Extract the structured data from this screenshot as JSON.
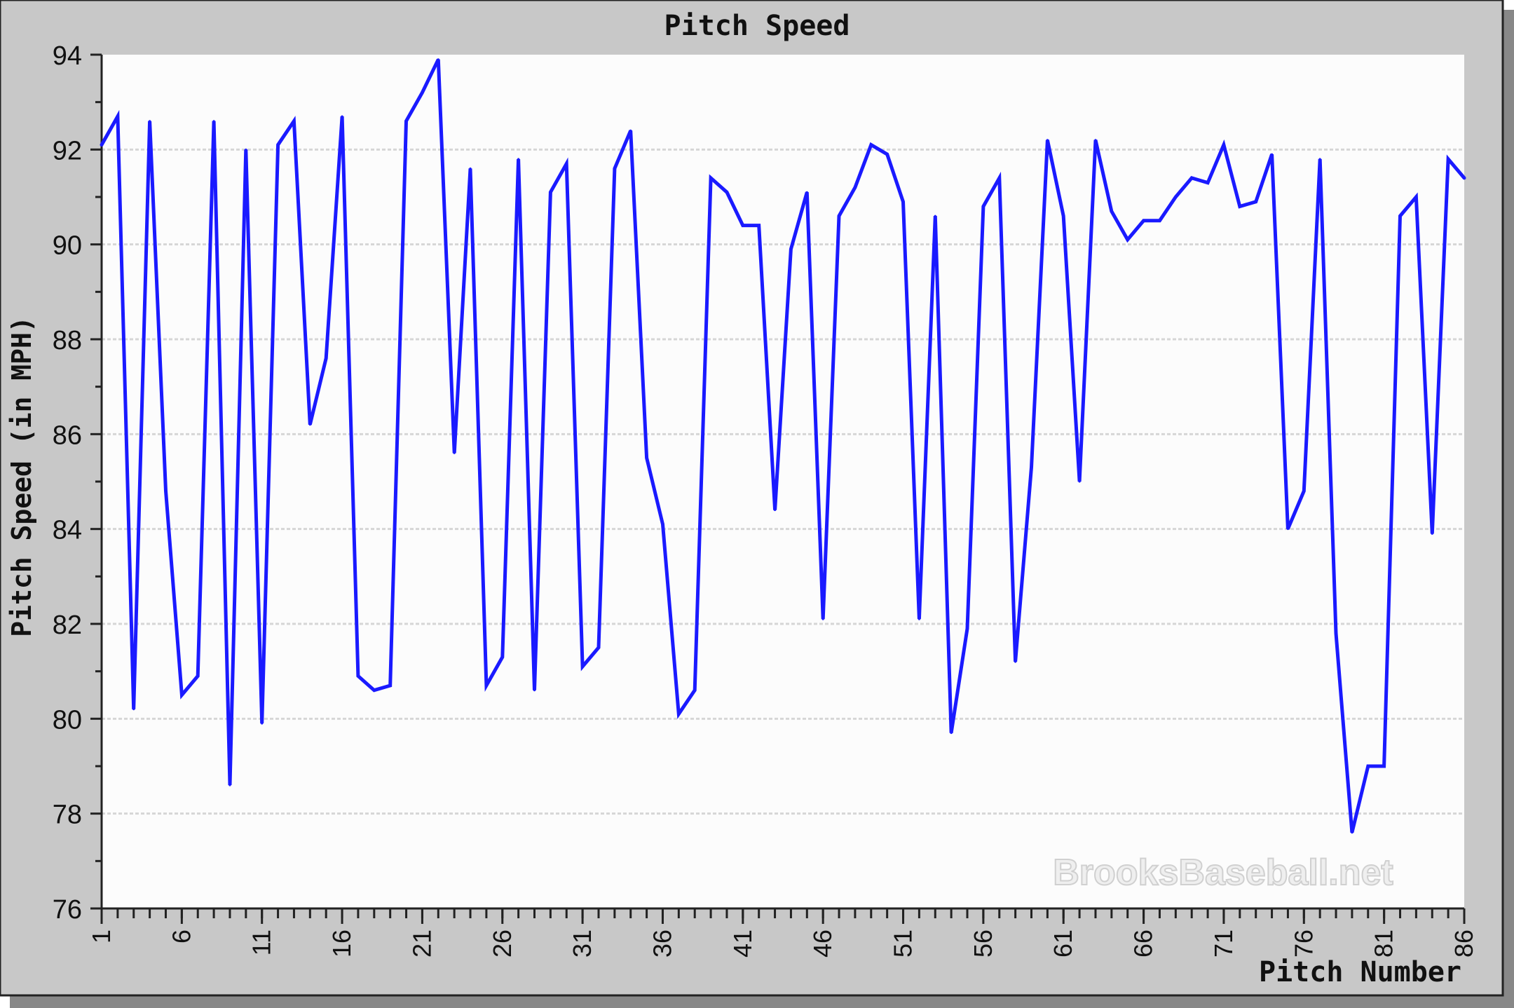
{
  "chart_data": {
    "type": "line",
    "title": "Pitch Speed",
    "xlabel": "Pitch Number",
    "ylabel": "Pitch Speed (in MPH)",
    "watermark": "BrooksBaseball.net",
    "ylim": [
      76,
      94
    ],
    "xlim": [
      1,
      86
    ],
    "yticks": [
      "76",
      "78",
      "80",
      "82",
      "84",
      "86",
      "88",
      "90",
      "92",
      "94"
    ],
    "xticks": [
      "1",
      "6",
      "11",
      "16",
      "21",
      "26",
      "31",
      "36",
      "41",
      "46",
      "51",
      "56",
      "61",
      "66",
      "71",
      "76",
      "81",
      "86"
    ],
    "grid": true,
    "colors": {
      "line": "#1a1aff",
      "frame": "#c8c8c8",
      "plot_bg": "#fcfcfc",
      "grid": "#d6d6d6"
    },
    "series": [
      {
        "x": [
          1,
          2,
          3,
          4,
          5,
          6,
          7,
          8,
          9,
          10,
          11,
          12,
          13,
          14,
          15,
          16,
          17,
          18,
          19,
          20,
          21,
          22,
          23,
          24,
          25,
          26,
          27,
          28,
          29,
          30,
          31,
          32,
          33,
          34,
          35,
          36,
          37,
          38,
          39,
          40,
          41,
          42,
          43,
          44,
          45,
          46,
          47,
          48,
          49,
          50,
          51,
          52,
          53,
          54,
          55,
          56,
          57,
          58,
          59,
          60,
          61,
          62,
          63,
          64,
          65,
          66,
          67,
          68,
          69,
          70,
          71,
          72,
          73,
          74,
          75,
          76,
          77,
          78,
          79,
          80,
          81,
          82,
          83,
          84,
          85,
          86
        ],
        "values": [
          92.1,
          92.7,
          80.2,
          92.6,
          84.8,
          80.5,
          80.9,
          92.6,
          78.6,
          92.0,
          79.9,
          92.1,
          92.6,
          86.2,
          87.6,
          92.7,
          80.9,
          80.6,
          80.7,
          92.6,
          93.2,
          93.9,
          85.6,
          91.6,
          80.7,
          81.3,
          91.8,
          80.6,
          91.1,
          91.7,
          81.1,
          81.5,
          91.6,
          92.4,
          85.5,
          84.1,
          80.1,
          80.6,
          91.4,
          91.1,
          90.4,
          90.4,
          84.4,
          89.9,
          91.1,
          82.1,
          90.6,
          91.2,
          92.1,
          91.9,
          90.9,
          82.1,
          90.6,
          79.7,
          81.9,
          90.8,
          91.4,
          81.2,
          85.3,
          92.2,
          90.6,
          85.0,
          92.2,
          90.7,
          90.1,
          90.5,
          90.5,
          91.0,
          91.4,
          91.3,
          92.1,
          90.8,
          90.9,
          91.9,
          84.0,
          84.8,
          91.8,
          81.8,
          77.6,
          79.0,
          79.0,
          90.6,
          91.0,
          83.9,
          91.8,
          91.4
        ]
      }
    ]
  }
}
